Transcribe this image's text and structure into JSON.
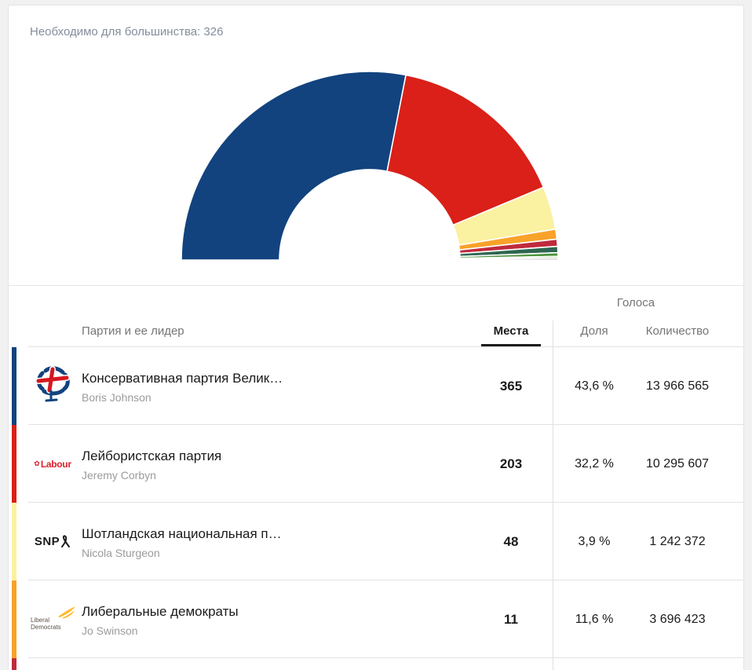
{
  "page": {
    "background": "#f1f1f2",
    "card_background": "#ffffff"
  },
  "majority_label": "Необходимо для большинства: 326",
  "chart_data": {
    "type": "half-donut",
    "title": "Необходимо для большинства: 326",
    "total_seats": 650,
    "majority_needed": 326,
    "legend_position": "none",
    "segments": [
      {
        "name": "Консервативная партия Велик…",
        "value": 365,
        "color": "#12437E"
      },
      {
        "name": "Лейбористская партия",
        "value": 203,
        "color": "#DA2018"
      },
      {
        "name": "Шотландская национальная п…",
        "value": 48,
        "color": "#FAF1A1"
      },
      {
        "name": "Либеральные демократы",
        "value": 11,
        "color": "#F8A229"
      },
      {
        "value": 8,
        "color": "#C02A3C"
      },
      {
        "value": 7,
        "color": "#2E6651"
      },
      {
        "value": 4,
        "color": "#49933B"
      },
      {
        "value": 2,
        "color": "#A6CE8C"
      },
      {
        "value": 2,
        "color": "#9A9A9A"
      }
    ]
  },
  "table": {
    "headers": {
      "party": "Партия и ее лидер",
      "seats": "Места",
      "votes_group": "Голоса",
      "share": "Доля",
      "count": "Количество"
    },
    "rows": [
      {
        "party": "Консервативная партия Велик…",
        "leader": "Boris Johnson",
        "seats": "365",
        "share": "43,6 %",
        "count": "13 966 565",
        "stripe": "#12437E"
      },
      {
        "party": "Лейбористская партия",
        "leader": "Jeremy Corbyn",
        "seats": "203",
        "share": "32,2 %",
        "count": "10 295 607",
        "stripe": "#DA2018"
      },
      {
        "party": "Шотландская национальная п…",
        "leader": "Nicola Sturgeon",
        "seats": "48",
        "share": "3,9 %",
        "count": "1 242 372",
        "stripe": "#FAF1A1"
      },
      {
        "party": "Либеральные демократы",
        "leader": "Jo Swinson",
        "seats": "11",
        "share": "11,6 %",
        "count": "3 696 423",
        "stripe": "#F8A229"
      }
    ],
    "partial_row_stripe": "#C02A3C",
    "logos": {
      "labour_rose": "✿",
      "labour_word": "Labour",
      "snp_word": "SNP",
      "libdem_line1": "Liberal",
      "libdem_line2": "Democrats"
    }
  }
}
